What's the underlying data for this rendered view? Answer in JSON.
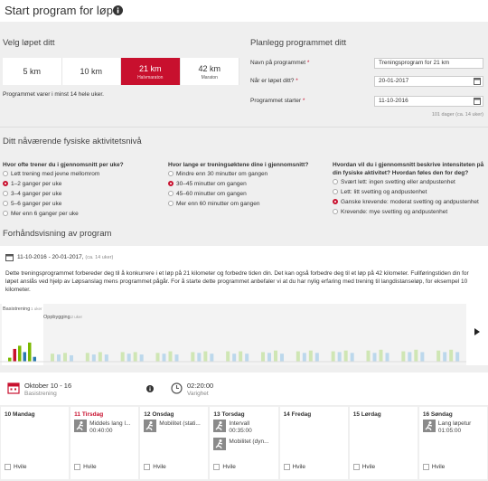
{
  "header": {
    "title": "Start program for løp"
  },
  "race": {
    "heading": "Velg løpet ditt",
    "options": [
      {
        "label": "5 km"
      },
      {
        "label": "10 km"
      },
      {
        "label": "21 km",
        "sub": "Halvmaraton",
        "selected": true
      },
      {
        "label": "42 km",
        "sub": "Maraton"
      }
    ],
    "note": "Programmet varer i minst 14 hele uker."
  },
  "plan": {
    "heading": "Planlegg programmet ditt",
    "fields": [
      {
        "label": "Navn på programmet",
        "required": "*",
        "value": "Treningsprogram for 21 km"
      },
      {
        "label": "Når er løpet ditt?",
        "required": "*",
        "value": "20-01-2017",
        "calendar": true
      },
      {
        "label": "Programmet starter",
        "required": "*",
        "value": "11-10-2016",
        "calendar": true
      }
    ],
    "hint": "101 dager (ca. 14 uker)"
  },
  "activity": {
    "heading": "Ditt nåværende fysiske aktivitetsnivå",
    "questions": [
      {
        "text": "Hvor ofte trener du i gjennomsnitt per uke?",
        "selected": 1,
        "options": [
          "Lett trening med jevne mellomrom",
          "1–2 ganger per uke",
          "3–4 ganger per uke",
          "5–6 ganger per uke",
          "Mer enn 6 ganger per uke"
        ]
      },
      {
        "text": "Hvor lange er treningsøktene dine i gjennomsnitt?",
        "selected": 1,
        "options": [
          "Mindre enn 30 minutter om gangen",
          "30–45 minutter om gangen",
          "45–60 minutter om gangen",
          "Mer enn 60 minutter om gangen"
        ]
      },
      {
        "text": "Hvordan vil du i gjennomsnitt beskrive intensiteten på din fysiske aktivitet? Hvordan føles den for deg?",
        "selected": 2,
        "options": [
          "Svært lett: ingen svetting eller andpustenhet",
          "Lett: litt svetting og andpustenhet",
          "Ganske krevende: moderat svetting og andpustenhet",
          "Krevende: mye svetting og andpustenhet"
        ]
      }
    ]
  },
  "preview": {
    "heading": "Forhåndsvisning av program",
    "dates": "11-10-2016 - 20-01-2017,",
    "duration": "(ca. 14 uker)",
    "description": "Dette treningsprogrammet forbereder deg til å konkurrere i et løp på 21 kilometer og forbedre tiden din. Det kan også forbedre deg til et løp på 42 kilometer. Fullføringstiden din for løpet anslås ved hjelp av Løpsanslag mens programmet pågår. For å starte dette programmet anbefaler vi at du har nylig erfaring med trening til langdistanseløp, for eksempel 10 kilometer.",
    "chart": {
      "ylim": [
        0,
        100
      ],
      "basis": {
        "name": "Basistrening",
        "length": "1 uker",
        "values": [
          10,
          32,
          40,
          24,
          48,
          12
        ],
        "colors": [
          "#7ab800",
          "#c8102e",
          "#7ab800",
          "#2a7ab0",
          "#7ab800",
          "#2a7ab0"
        ]
      },
      "build": {
        "name": "Oppbygging",
        "length": "12 uker",
        "colors": [
          "#cfe6b4",
          "#bcd8ec",
          "#cfe6b4",
          "#bcd8ec"
        ],
        "weeks": [
          [
            20,
            18,
            22,
            16
          ],
          [
            22,
            18,
            24,
            18
          ],
          [
            24,
            20,
            24,
            18
          ],
          [
            22,
            20,
            26,
            18
          ],
          [
            24,
            22,
            26,
            20
          ],
          [
            26,
            20,
            26,
            20
          ],
          [
            24,
            22,
            28,
            20
          ],
          [
            26,
            22,
            28,
            22
          ],
          [
            26,
            24,
            28,
            22
          ],
          [
            28,
            22,
            30,
            22
          ],
          [
            26,
            24,
            30,
            24
          ],
          [
            28,
            24,
            30,
            24
          ]
        ]
      }
    },
    "week": {
      "title": "Oktober 10 - 16",
      "phase": "Basistrening",
      "total": "02:20:00",
      "total_label": "Varighet"
    },
    "days": [
      {
        "name": "10 Mandag",
        "rest": "Hvile",
        "activities": []
      },
      {
        "name": "11 Tirsdag",
        "today": true,
        "rest": "Hvile",
        "activities": [
          {
            "title": "Middels lang l...",
            "time": "00:40:00"
          }
        ]
      },
      {
        "name": "12 Onsdag",
        "rest": "Hvile",
        "activities": [
          {
            "title": "Mobilitet (stati..."
          }
        ]
      },
      {
        "name": "13 Torsdag",
        "rest": "Hvile",
        "activities": [
          {
            "title": "Intervall",
            "time": "00:35:00"
          },
          {
            "title": "Mobilitet (dyn..."
          }
        ]
      },
      {
        "name": "14 Fredag",
        "rest": "Hvile",
        "activities": []
      },
      {
        "name": "15 Lørdag",
        "rest": "Hvile",
        "activities": []
      },
      {
        "name": "16 Søndag",
        "rest": "Hvile",
        "activities": [
          {
            "title": "Lang løpetur",
            "time": "01:05:00"
          }
        ]
      }
    ]
  }
}
